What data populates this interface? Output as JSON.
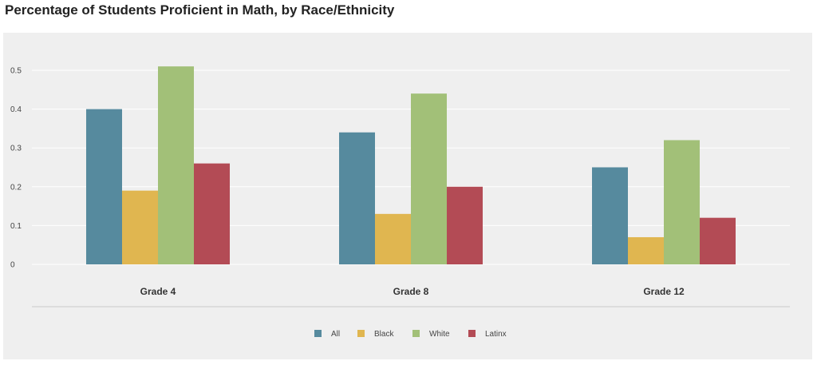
{
  "chart_data": {
    "type": "bar",
    "title": "Percentage of Students Proficient in Math, by Race/Ethnicity",
    "categories": [
      "Grade 4",
      "Grade 8",
      "Grade 12"
    ],
    "series": [
      {
        "name": "All",
        "color": "#568a9e",
        "values": [
          0.4,
          0.34,
          0.25
        ]
      },
      {
        "name": "Black",
        "color": "#e0b650",
        "values": [
          0.19,
          0.13,
          0.07
        ]
      },
      {
        "name": "White",
        "color": "#a2c078",
        "values": [
          0.51,
          0.44,
          0.32
        ]
      },
      {
        "name": "Latinx",
        "color": "#b34b55",
        "values": [
          0.26,
          0.2,
          0.12
        ]
      }
    ],
    "yticks": [
      "0",
      "0.1",
      "0.2",
      "0.3",
      "0.4",
      "0.5"
    ],
    "ylim": [
      0,
      0.5
    ],
    "grid": true,
    "legend": "bottom-center"
  }
}
